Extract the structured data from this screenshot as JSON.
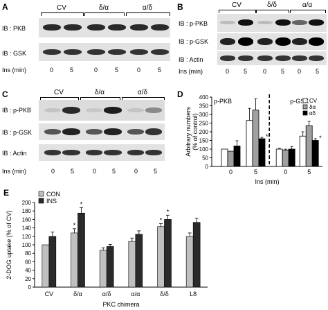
{
  "panels": {
    "A": {
      "label": "A",
      "groups": [
        "CV",
        "δ/α",
        "α/δ"
      ],
      "rows": [
        "IB : PKB",
        "IB : GSK"
      ],
      "ins_label": "Ins (min)",
      "lanes": [
        "0",
        "5",
        "0",
        "5",
        "0",
        "5"
      ]
    },
    "B": {
      "label": "B",
      "groups": [
        "CV",
        "δ/δ",
        "α/α"
      ],
      "rows": [
        "IB : p-PKB",
        "IB : p-GSK",
        "IB : Actin"
      ],
      "ins_label": "Ins (min)",
      "lanes": [
        "0",
        "5",
        "0",
        "5",
        "0",
        "5"
      ]
    },
    "C": {
      "label": "C",
      "groups": [
        "CV",
        "δ/α",
        "α/δ"
      ],
      "rows": [
        "IB : p-PKB",
        "IB : p-GSK",
        "IB : Actin"
      ],
      "ins_label": "Ins (min)",
      "lanes": [
        "0",
        "5",
        "0",
        "5",
        "0",
        "5"
      ]
    },
    "D": {
      "label": "D"
    },
    "E": {
      "label": "E"
    }
  },
  "chart_data": [
    {
      "type": "bar",
      "panel": "D",
      "ylabel": "Arbitrary numbers (% of control)",
      "xlabel": "Ins (min)",
      "ylim": [
        0,
        400
      ],
      "yticks": [
        0,
        50,
        100,
        150,
        200,
        250,
        300,
        350,
        400
      ],
      "subplots": [
        {
          "title": "p-PKB",
          "categories": [
            "0",
            "5"
          ],
          "series": [
            {
              "name": "CV",
              "values": [
                100,
                265
              ],
              "errors": [
                0,
                70
              ]
            },
            {
              "name": "δα",
              "values": [
                88,
                325
              ],
              "errors": [
                0,
                65
              ]
            },
            {
              "name": "αδ",
              "values": [
                118,
                160
              ],
              "errors": [
                30,
                8
              ]
            }
          ],
          "annotations": [
            "**"
          ]
        },
        {
          "title": "p-GSK",
          "categories": [
            "0",
            "5"
          ],
          "series": [
            {
              "name": "CV",
              "values": [
                100,
                175
              ],
              "errors": [
                5,
                25
              ]
            },
            {
              "name": "δα",
              "values": [
                95,
                235
              ],
              "errors": [
                5,
                25
              ]
            },
            {
              "name": "αδ",
              "values": [
                100,
                150
              ],
              "errors": [
                15,
                10
              ]
            }
          ],
          "annotations": [
            "*"
          ]
        }
      ],
      "legend": [
        "CV",
        "δα",
        "αδ"
      ],
      "colors": [
        "#ffffff",
        "#a0a0a0",
        "#000000"
      ]
    },
    {
      "type": "bar",
      "panel": "E",
      "ylabel": "2-DOG uptake (% of CV)",
      "xlabel": "PKC chimera",
      "ylim": [
        0,
        200
      ],
      "yticks": [
        0,
        20,
        40,
        60,
        80,
        100,
        120,
        140,
        160,
        180,
        200
      ],
      "categories": [
        "CV",
        "δ/α",
        "α/δ",
        "α/α",
        "δ/δ",
        "L8"
      ],
      "series": [
        {
          "name": "CON",
          "values": [
            100,
            128,
            87,
            108,
            143,
            120
          ],
          "errors": [
            0,
            10,
            6,
            8,
            7,
            8
          ]
        },
        {
          "name": "INS",
          "values": [
            120,
            175,
            96,
            125,
            160,
            153
          ],
          "errors": [
            10,
            13,
            5,
            8,
            10,
            10
          ]
        }
      ],
      "annotations": [
        "*",
        "*",
        "*",
        "*"
      ],
      "legend": [
        "CON",
        "INS"
      ],
      "colors": [
        "#c0c0c0",
        "#2a2a2a"
      ]
    }
  ]
}
